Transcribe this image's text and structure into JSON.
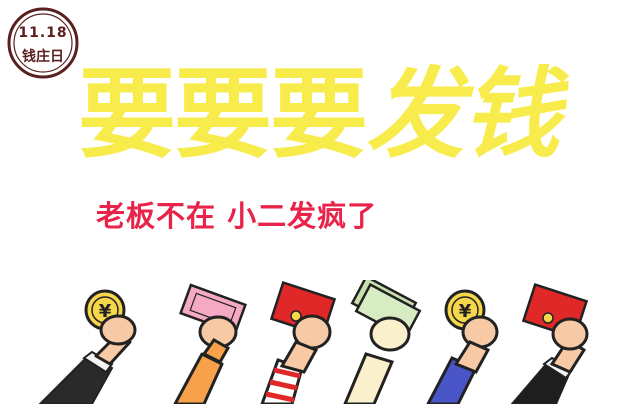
{
  "stamp": {
    "date": "11.18",
    "name": "钱庄日"
  },
  "headline": {
    "part1": "要要要",
    "part2": "发钱"
  },
  "subtitle": "老板不在 小二发疯了",
  "coin_symbol": "¥",
  "colors": {
    "headline": "#f8ec4c",
    "subtitle": "#e8244a",
    "stamp": "#5a2020",
    "coin": "#f6d64a",
    "envelope": "#e02828",
    "outline": "#222222"
  },
  "arms": [
    {
      "item": "coin-icon",
      "sleeve": "black suit"
    },
    {
      "item": "banknote-icon",
      "sleeve": "orange"
    },
    {
      "item": "red-envelope-icon",
      "sleeve": "red white stripes"
    },
    {
      "item": "cash-stack-icon",
      "sleeve": "cream"
    },
    {
      "item": "coin-icon",
      "sleeve": "blue"
    },
    {
      "item": "red-envelope-icon",
      "sleeve": "black suit"
    }
  ]
}
